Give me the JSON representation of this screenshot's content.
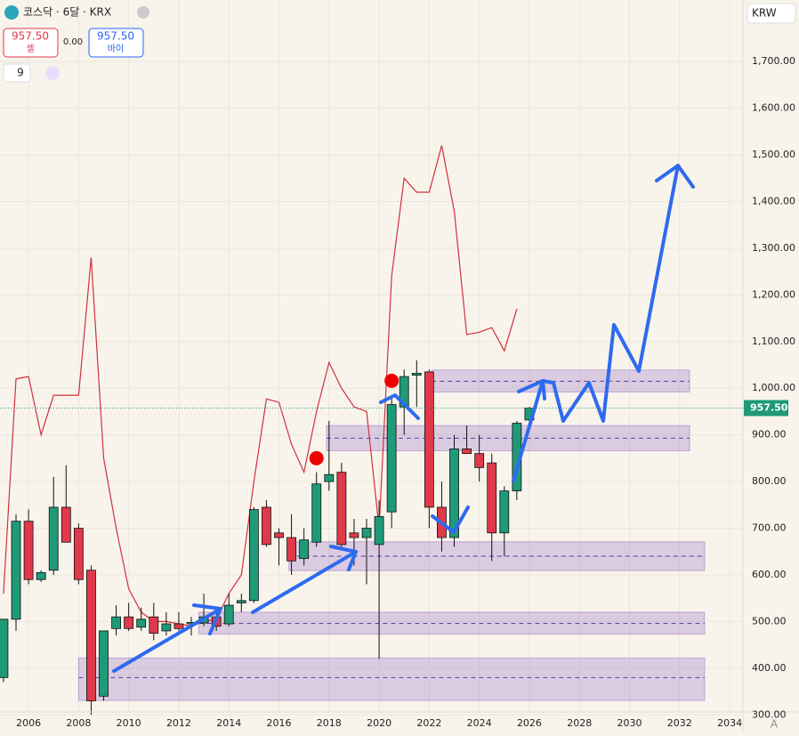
{
  "header": {
    "symbol": "코스닥 · 6달 · KRX",
    "sell_price": "957.50",
    "sell_label": "셀",
    "spread": "0.00",
    "buy_price": "957.50",
    "buy_label": "바이",
    "indicator_count": "9",
    "currency": "KRW",
    "scale_mode": "A"
  },
  "chart_data": {
    "type": "candlestick",
    "x": [
      2005,
      2005.5,
      2006,
      2006.5,
      2007,
      2007.5,
      2008,
      2008.5,
      2009,
      2009.5,
      2010,
      2010.5,
      2011,
      2011.5,
      2012,
      2012.5,
      2013,
      2013.5,
      2014,
      2014.5,
      2015,
      2015.5,
      2016,
      2016.5,
      2017,
      2017.5,
      2018,
      2018.5,
      2019,
      2019.5,
      2020,
      2020.5,
      2021,
      2021.5,
      2022,
      2022.5,
      2023,
      2023.5,
      2024,
      2024.5,
      2025,
      2025.5,
      2026
    ],
    "open": [
      380,
      505,
      715,
      590,
      610,
      745,
      700,
      610,
      340,
      485,
      510,
      488,
      510,
      480,
      495,
      495,
      497,
      510,
      495,
      540,
      545,
      745,
      690,
      680,
      635,
      670,
      800,
      820,
      690,
      680,
      665,
      735,
      960,
      1028,
      1035,
      745,
      680,
      870,
      860,
      840,
      690,
      780,
      932
    ],
    "high": [
      505,
      730,
      740,
      610,
      810,
      835,
      710,
      620,
      480,
      535,
      540,
      530,
      540,
      520,
      520,
      510,
      560,
      530,
      560,
      560,
      745,
      760,
      700,
      730,
      700,
      820,
      930,
      840,
      720,
      720,
      760,
      980,
      1040,
      1060,
      1040,
      800,
      900,
      920,
      900,
      860,
      790,
      930,
      960
    ],
    "low": [
      370,
      480,
      580,
      585,
      600,
      670,
      580,
      300,
      330,
      470,
      480,
      480,
      460,
      470,
      480,
      470,
      490,
      480,
      490,
      520,
      540,
      660,
      620,
      600,
      620,
      660,
      780,
      660,
      620,
      580,
      420,
      700,
      900,
      960,
      700,
      650,
      660,
      860,
      800,
      630,
      640,
      760,
      930
    ],
    "close": [
      505,
      715,
      590,
      605,
      745,
      670,
      590,
      330,
      480,
      510,
      485,
      505,
      475,
      495,
      485,
      498,
      510,
      490,
      535,
      545,
      740,
      665,
      680,
      630,
      675,
      795,
      815,
      665,
      680,
      700,
      725,
      965,
      1025,
      1032,
      745,
      680,
      870,
      860,
      830,
      690,
      780,
      925,
      957.5
    ],
    "up_color": "#1f9a78",
    "down_color": "#e0394a",
    "band": {
      "x": [
        2005,
        2005.5,
        2006,
        2006.5,
        2007,
        2007.5,
        2008,
        2008.5,
        2009,
        2009.5,
        2010,
        2010.5,
        2011,
        2011.5,
        2012,
        2012.5,
        2013,
        2013.5,
        2014,
        2014.5,
        2015,
        2015.5,
        2016,
        2016.5,
        2017,
        2017.5,
        2018,
        2018.5,
        2019,
        2019.5,
        2020,
        2020.5,
        2021,
        2021.5,
        2022,
        2022.5,
        2023,
        2023.5,
        2024,
        2024.5,
        2025,
        2025.5
      ],
      "values": [
        560,
        1020,
        1025,
        900,
        985,
        985,
        985,
        1280,
        850,
        700,
        570,
        520,
        500,
        500,
        495,
        490,
        500,
        505,
        560,
        600,
        800,
        977,
        970,
        880,
        820,
        950,
        1055,
        1000,
        960,
        950,
        700,
        1240,
        1450,
        1420,
        1420,
        1520,
        1380,
        1115,
        1120,
        1130,
        1080,
        1170
      ],
      "color": "#d0303e"
    },
    "zones": [
      {
        "from": 2008,
        "to": 2033,
        "low": 331,
        "high": 422,
        "mid": 380
      },
      {
        "from": 2012.8,
        "to": 2033,
        "low": 473,
        "high": 520,
        "mid": 496
      },
      {
        "from": 2016.4,
        "to": 2033,
        "low": 609,
        "high": 671,
        "mid": 640
      },
      {
        "from": 2017.9,
        "to": 2032.4,
        "low": 866,
        "high": 920,
        "mid": 893
      },
      {
        "from": 2022.1,
        "to": 2032.4,
        "low": 992,
        "high": 1039,
        "mid": 1015
      }
    ],
    "markers": [
      {
        "x": 2017.5,
        "y": 850
      },
      {
        "x": 2020.5,
        "y": 1016
      }
    ],
    "last_price": {
      "value": 957.5,
      "label": "957.50"
    },
    "xlim": [
      2004.86,
      2034.53
    ],
    "ylim": [
      296.7,
      1832
    ],
    "xticks": [
      2006,
      2008,
      2010,
      2012,
      2014,
      2016,
      2018,
      2020,
      2022,
      2024,
      2026,
      2028,
      2030,
      2032,
      2034
    ],
    "yticks": [
      {
        "value": 300,
        "label": "300.00"
      },
      {
        "value": 400,
        "label": "400.00"
      },
      {
        "value": 500,
        "label": "500.00"
      },
      {
        "value": 600,
        "label": "600.00"
      },
      {
        "value": 700,
        "label": "700.00"
      },
      {
        "value": 800,
        "label": "800.00"
      },
      {
        "value": 900,
        "label": "900.00"
      },
      {
        "value": 1000,
        "label": "1,000.00"
      },
      {
        "value": 1100,
        "label": "1,100.00"
      },
      {
        "value": 1200,
        "label": "1,200.00"
      },
      {
        "value": 1300,
        "label": "1,300.00"
      },
      {
        "value": 1400,
        "label": "1,400.00"
      },
      {
        "value": 1500,
        "label": "1,500.00"
      },
      {
        "value": 1600,
        "label": "1,600.00"
      },
      {
        "value": 1700,
        "label": "1,700.00"
      }
    ],
    "grid": true
  }
}
